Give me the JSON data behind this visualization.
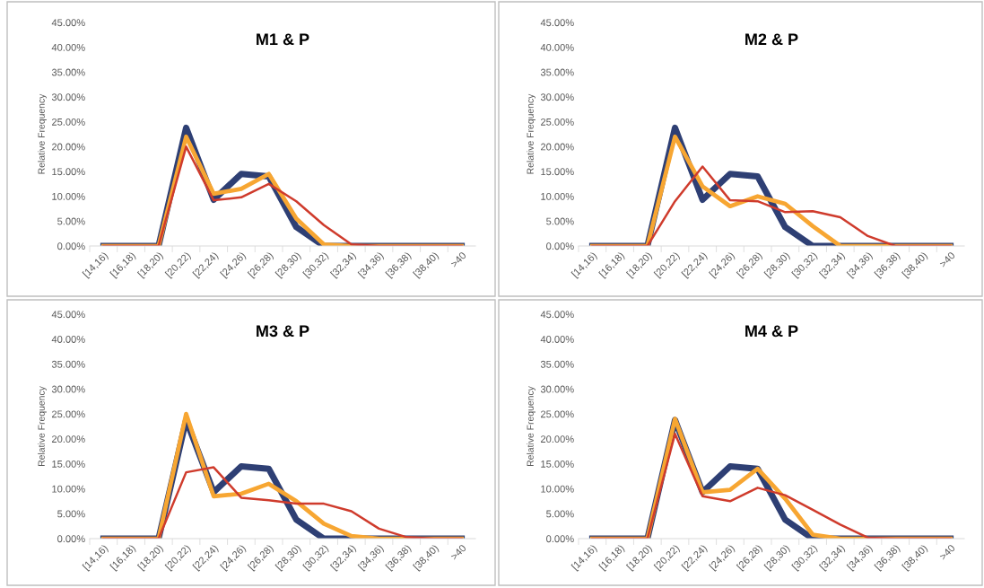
{
  "chart_data": [
    {
      "type": "line",
      "title": "M1 & P",
      "ylabel": "Relative Frequency",
      "categories": [
        "[14,16)",
        "[16,18)",
        "[18,20)",
        "[20,22)",
        "[22,24)",
        "[24,26)",
        "[26,28)",
        "[28,30)",
        "[30,32)",
        "[32,34)",
        "[34,36)",
        "[36,38)",
        "[38,40)",
        ">40"
      ],
      "series": [
        {
          "color": "#2e3f74",
          "values": [
            0,
            0,
            0,
            23.8,
            9.3,
            14.5,
            14,
            3.8,
            0,
            0,
            0,
            0,
            0,
            0
          ]
        },
        {
          "color": "#f7a632",
          "values": [
            0,
            0,
            0,
            22,
            10.5,
            11.5,
            14.5,
            5.5,
            0.3,
            0,
            0,
            0,
            0,
            0
          ]
        },
        {
          "color": "#cf3b2c",
          "values": [
            0,
            0,
            0,
            20,
            9.2,
            9.8,
            12.5,
            9,
            4.2,
            0.3,
            0,
            0,
            0,
            0
          ]
        }
      ],
      "ylim": [
        0,
        45
      ],
      "yticks": [
        {
          "value": 0,
          "label": "0.00%"
        },
        {
          "value": 5,
          "label": "5.00%"
        },
        {
          "value": 10,
          "label": "10.00%"
        },
        {
          "value": 15,
          "label": "15.00%"
        },
        {
          "value": 20,
          "label": "20.00%"
        },
        {
          "value": 25,
          "label": "25.00%"
        },
        {
          "value": 30,
          "label": "30.00%"
        },
        {
          "value": 35,
          "label": "35.00%"
        },
        {
          "value": 40,
          "label": "40.00%"
        },
        {
          "value": 45,
          "label": "45.00%"
        }
      ],
      "grid": false,
      "marker": "none",
      "line_style": "solid"
    },
    {
      "type": "line",
      "title": "M2 & P",
      "ylabel": "Relative Frequency",
      "categories": [
        "[14,16)",
        "[16,18)",
        "[18,20)",
        "[20,22)",
        "[22,24)",
        "[24,26)",
        "[26,28)",
        "[28,30)",
        "[30,32)",
        "[32,34)",
        "[34,36)",
        "[36,38)",
        "[38,40)",
        ">40"
      ],
      "series": [
        {
          "color": "#2e3f74",
          "values": [
            0,
            0,
            0,
            23.8,
            9.3,
            14.5,
            14,
            3.8,
            0,
            0,
            0,
            0,
            0,
            0
          ]
        },
        {
          "color": "#f7a632",
          "values": [
            0,
            0,
            0,
            22,
            12,
            8,
            10,
            8.5,
            4,
            0,
            0,
            0,
            0,
            0
          ]
        },
        {
          "color": "#cf3b2c",
          "values": [
            0,
            0,
            0,
            9,
            16,
            9.2,
            9,
            6.8,
            7,
            5.8,
            2,
            0,
            0,
            0
          ]
        }
      ],
      "ylim": [
        0,
        45
      ],
      "yticks": [
        {
          "value": 0,
          "label": "0.00%"
        },
        {
          "value": 5,
          "label": "5.00%"
        },
        {
          "value": 10,
          "label": "10.00%"
        },
        {
          "value": 15,
          "label": "15.00%"
        },
        {
          "value": 20,
          "label": "20.00%"
        },
        {
          "value": 25,
          "label": "25.00%"
        },
        {
          "value": 30,
          "label": "30.00%"
        },
        {
          "value": 35,
          "label": "35.00%"
        },
        {
          "value": 40,
          "label": "40.00%"
        },
        {
          "value": 45,
          "label": "45.00%"
        }
      ],
      "grid": false,
      "marker": "none",
      "line_style": "solid"
    },
    {
      "type": "line",
      "title": "M3 & P",
      "ylabel": "Relative Frequency",
      "categories": [
        "[14,16)",
        "[16,18)",
        "[18,20)",
        "[20,22)",
        "[22,24)",
        "[24,26)",
        "[26,28)",
        "[28,30)",
        "[30,32)",
        "[32,34)",
        "[34,36)",
        "[36,38)",
        "[38,40)",
        ">40"
      ],
      "series": [
        {
          "color": "#2e3f74",
          "values": [
            0,
            0,
            0,
            23.8,
            9.3,
            14.5,
            14,
            3.8,
            0,
            0,
            0,
            0,
            0,
            0
          ]
        },
        {
          "color": "#f7a632",
          "values": [
            0,
            0,
            0,
            25,
            8.5,
            9,
            11,
            7.5,
            3,
            0.5,
            0,
            0,
            0,
            0
          ]
        },
        {
          "color": "#cf3b2c",
          "values": [
            0,
            0,
            0,
            13.3,
            14.3,
            8.2,
            7.7,
            7,
            7,
            5.5,
            2,
            0.3,
            0,
            0
          ]
        }
      ],
      "ylim": [
        0,
        45
      ],
      "yticks": [
        {
          "value": 0,
          "label": "0.00%"
        },
        {
          "value": 5,
          "label": "5.00%"
        },
        {
          "value": 10,
          "label": "10.00%"
        },
        {
          "value": 15,
          "label": "15.00%"
        },
        {
          "value": 20,
          "label": "20.00%"
        },
        {
          "value": 25,
          "label": "25.00%"
        },
        {
          "value": 30,
          "label": "30.00%"
        },
        {
          "value": 35,
          "label": "35.00%"
        },
        {
          "value": 40,
          "label": "40.00%"
        },
        {
          "value": 45,
          "label": "45.00%"
        }
      ],
      "grid": false,
      "marker": "none",
      "line_style": "solid"
    },
    {
      "type": "line",
      "title": "M4 & P",
      "ylabel": "Relative Frequency",
      "categories": [
        "[14,16)",
        "[16,18)",
        "[18,20)",
        "[20,22)",
        "[22,24)",
        "[24,26)",
        "[26,28)",
        "[28,30)",
        "[30,32)",
        "[32,34)",
        "[34,36)",
        "[36,38)",
        "[38,40)",
        ">40"
      ],
      "series": [
        {
          "color": "#2e3f74",
          "values": [
            0,
            0,
            0,
            23.8,
            9.3,
            14.5,
            14,
            3.8,
            0,
            0,
            0,
            0,
            0,
            0
          ]
        },
        {
          "color": "#f7a632",
          "values": [
            0,
            0,
            0,
            24,
            9.3,
            9.8,
            14,
            8,
            0.8,
            0,
            0,
            0,
            0,
            0
          ]
        },
        {
          "color": "#cf3b2c",
          "values": [
            0,
            0,
            0,
            21,
            8.5,
            7.5,
            10.2,
            8.7,
            5.8,
            2.8,
            0.2,
            0,
            0,
            0
          ]
        }
      ],
      "ylim": [
        0,
        45
      ],
      "yticks": [
        {
          "value": 0,
          "label": "0.00%"
        },
        {
          "value": 5,
          "label": "5.00%"
        },
        {
          "value": 10,
          "label": "10.00%"
        },
        {
          "value": 15,
          "label": "15.00%"
        },
        {
          "value": 20,
          "label": "20.00%"
        },
        {
          "value": 25,
          "label": "25.00%"
        },
        {
          "value": 30,
          "label": "30.00%"
        },
        {
          "value": 35,
          "label": "35.00%"
        },
        {
          "value": 40,
          "label": "40.00%"
        },
        {
          "value": 45,
          "label": "45.00%"
        }
      ],
      "grid": false,
      "marker": "none",
      "line_style": "solid"
    }
  ]
}
